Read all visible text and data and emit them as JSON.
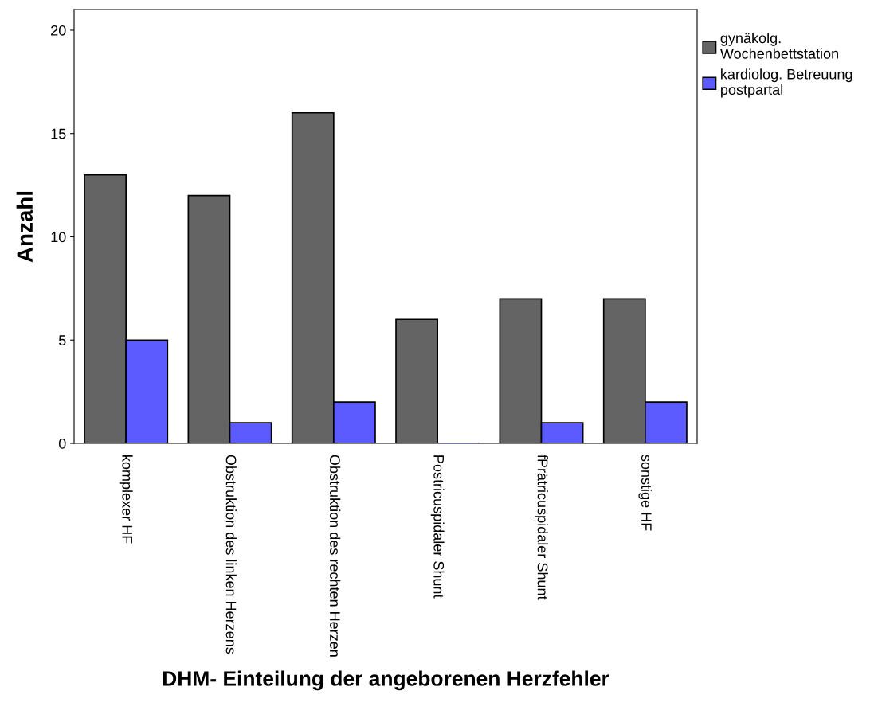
{
  "chart_data": {
    "type": "bar",
    "xlabel": "DHM- Einteilung der angeborenen Herzfehler",
    "ylabel": "Anzahl",
    "categories": [
      "komplexer HF",
      "Obstruktion des linken Herzens",
      "Obstruktion des rechten Herzen",
      "Postricuspidaler Shunt",
      "fPrätricuspidaler Shunt",
      "sonstige HF"
    ],
    "series": [
      {
        "name": "gynäkolg.\nWochenbettstation",
        "color": "#646464",
        "values": [
          13,
          12,
          16,
          6,
          7,
          7
        ]
      },
      {
        "name": "kardiolog. Betreuung\npostpartal",
        "color": "#5b5bff",
        "values": [
          5,
          1,
          2,
          0,
          1,
          2
        ]
      }
    ],
    "ylim": [
      0,
      21
    ],
    "yticks": [
      0,
      5,
      10,
      15,
      20
    ],
    "grid": false,
    "legend": "right"
  }
}
